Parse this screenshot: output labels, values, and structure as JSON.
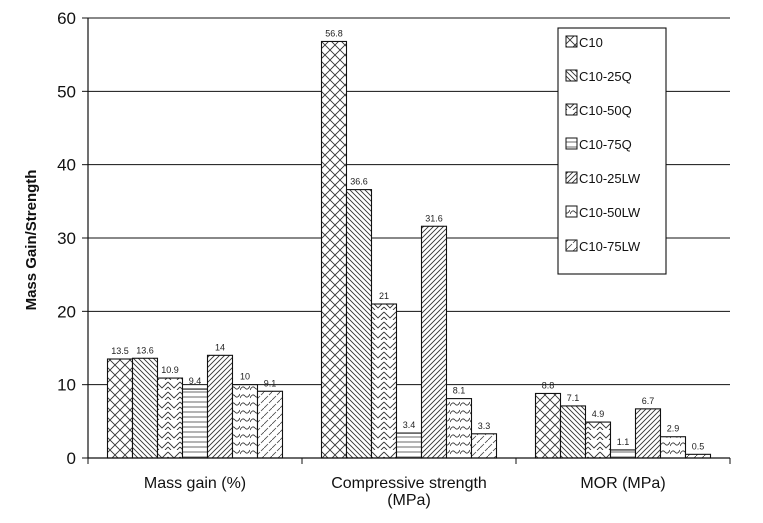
{
  "chart_data": {
    "type": "bar",
    "title": "",
    "xlabel": "",
    "ylabel": "Mass Gain/Strength",
    "ylim": [
      0,
      60
    ],
    "yticks": [
      "0",
      "10",
      "20",
      "30",
      "40",
      "50",
      "60"
    ],
    "grid": true,
    "legend_position": "top-right",
    "categories": [
      [
        "Mass gain (%)"
      ],
      [
        "Compressive strength",
        "(MPa)"
      ],
      [
        "MOR (MPa)"
      ]
    ],
    "series": [
      {
        "name": "C10",
        "pattern": "crosshatch",
        "values": [
          13.5,
          56.8,
          8.8
        ],
        "labels": [
          "13.5",
          "56.8",
          "8.8"
        ]
      },
      {
        "name": "C10-25Q",
        "pattern": "diag-down",
        "values": [
          13.6,
          36.6,
          7.1
        ],
        "labels": [
          "13.6",
          "36.6",
          "7.1"
        ]
      },
      {
        "name": "C10-50Q",
        "pattern": "wave",
        "values": [
          10.9,
          21,
          4.9
        ],
        "labels": [
          "10.9",
          "21",
          "4.9"
        ]
      },
      {
        "name": "C10-75Q",
        "pattern": "horizontal",
        "values": [
          9.4,
          3.4,
          1.1
        ],
        "labels": [
          "9.4",
          "3.4",
          "1.1"
        ]
      },
      {
        "name": "C10-25LW",
        "pattern": "diag-up",
        "values": [
          14,
          31.6,
          6.7
        ],
        "labels": [
          "14",
          "31.6",
          "6.7"
        ]
      },
      {
        "name": "C10-50LW",
        "pattern": "dash-wave",
        "values": [
          10,
          8.1,
          2.9
        ],
        "labels": [
          "10",
          "8.1",
          "2.9"
        ]
      },
      {
        "name": "C10-75LW",
        "pattern": "dash-diag",
        "values": [
          9.1,
          3.3,
          0.5
        ],
        "labels": [
          "9.1",
          "3.3",
          "0.5"
        ]
      }
    ]
  }
}
